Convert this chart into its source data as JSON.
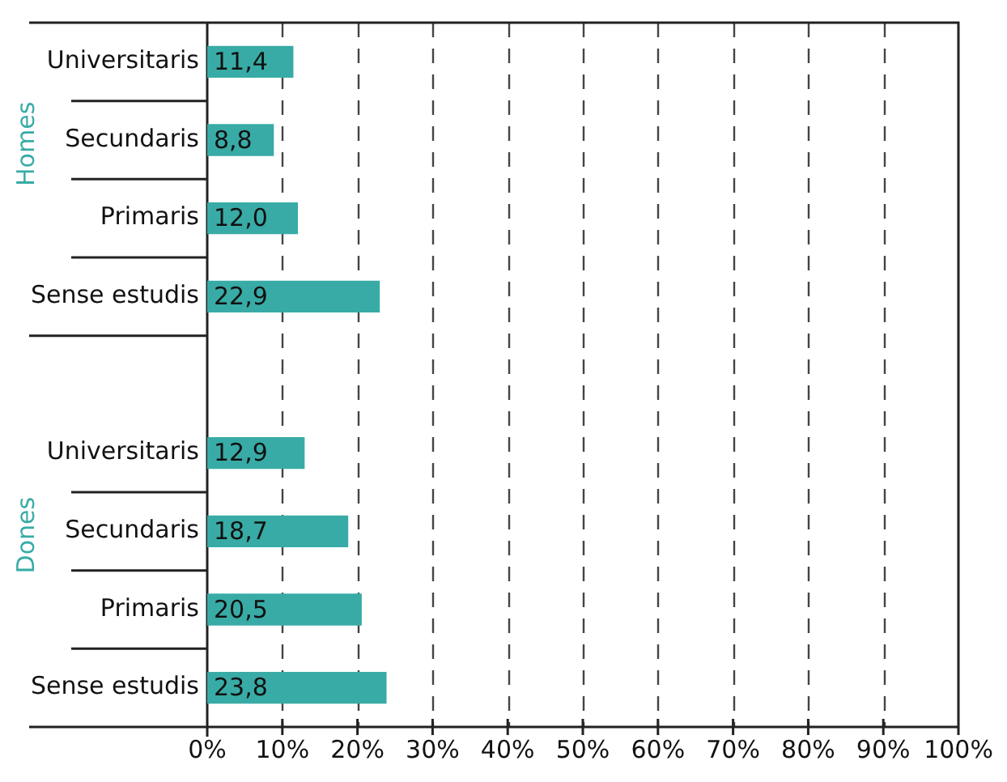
{
  "chart_data": {
    "type": "bar",
    "orientation": "horizontal",
    "categories": [
      "Universitaris",
      "Secundaris",
      "Primaris",
      "Sense estudis",
      null,
      "Universitaris",
      "Secundaris",
      "Primaris",
      "Sense estudis"
    ],
    "values": [
      11.4,
      8.8,
      12.0,
      22.9,
      null,
      12.9,
      18.7,
      20.5,
      23.8
    ],
    "value_labels": [
      "11,4",
      "8,8",
      "12,0",
      "22,9",
      null,
      "12,9",
      "18,7",
      "20,5",
      "23,8"
    ],
    "color": "#38aba6",
    "xlim": [
      0,
      100
    ],
    "xticks": [
      {
        "value": 0,
        "label": "0%"
      },
      {
        "value": 10,
        "label": "10%"
      },
      {
        "value": 20,
        "label": "20%"
      },
      {
        "value": 30,
        "label": "30%"
      },
      {
        "value": 40,
        "label": "40%"
      },
      {
        "value": 50,
        "label": "50%"
      },
      {
        "value": 60,
        "label": "60%"
      },
      {
        "value": 70,
        "label": "70%"
      },
      {
        "value": 80,
        "label": "80%"
      },
      {
        "value": 90,
        "label": "90%"
      },
      {
        "value": 100,
        "label": "100%"
      }
    ],
    "annotations": [
      "Homes",
      "Dones"
    ],
    "grid": "x",
    "legend": false
  }
}
